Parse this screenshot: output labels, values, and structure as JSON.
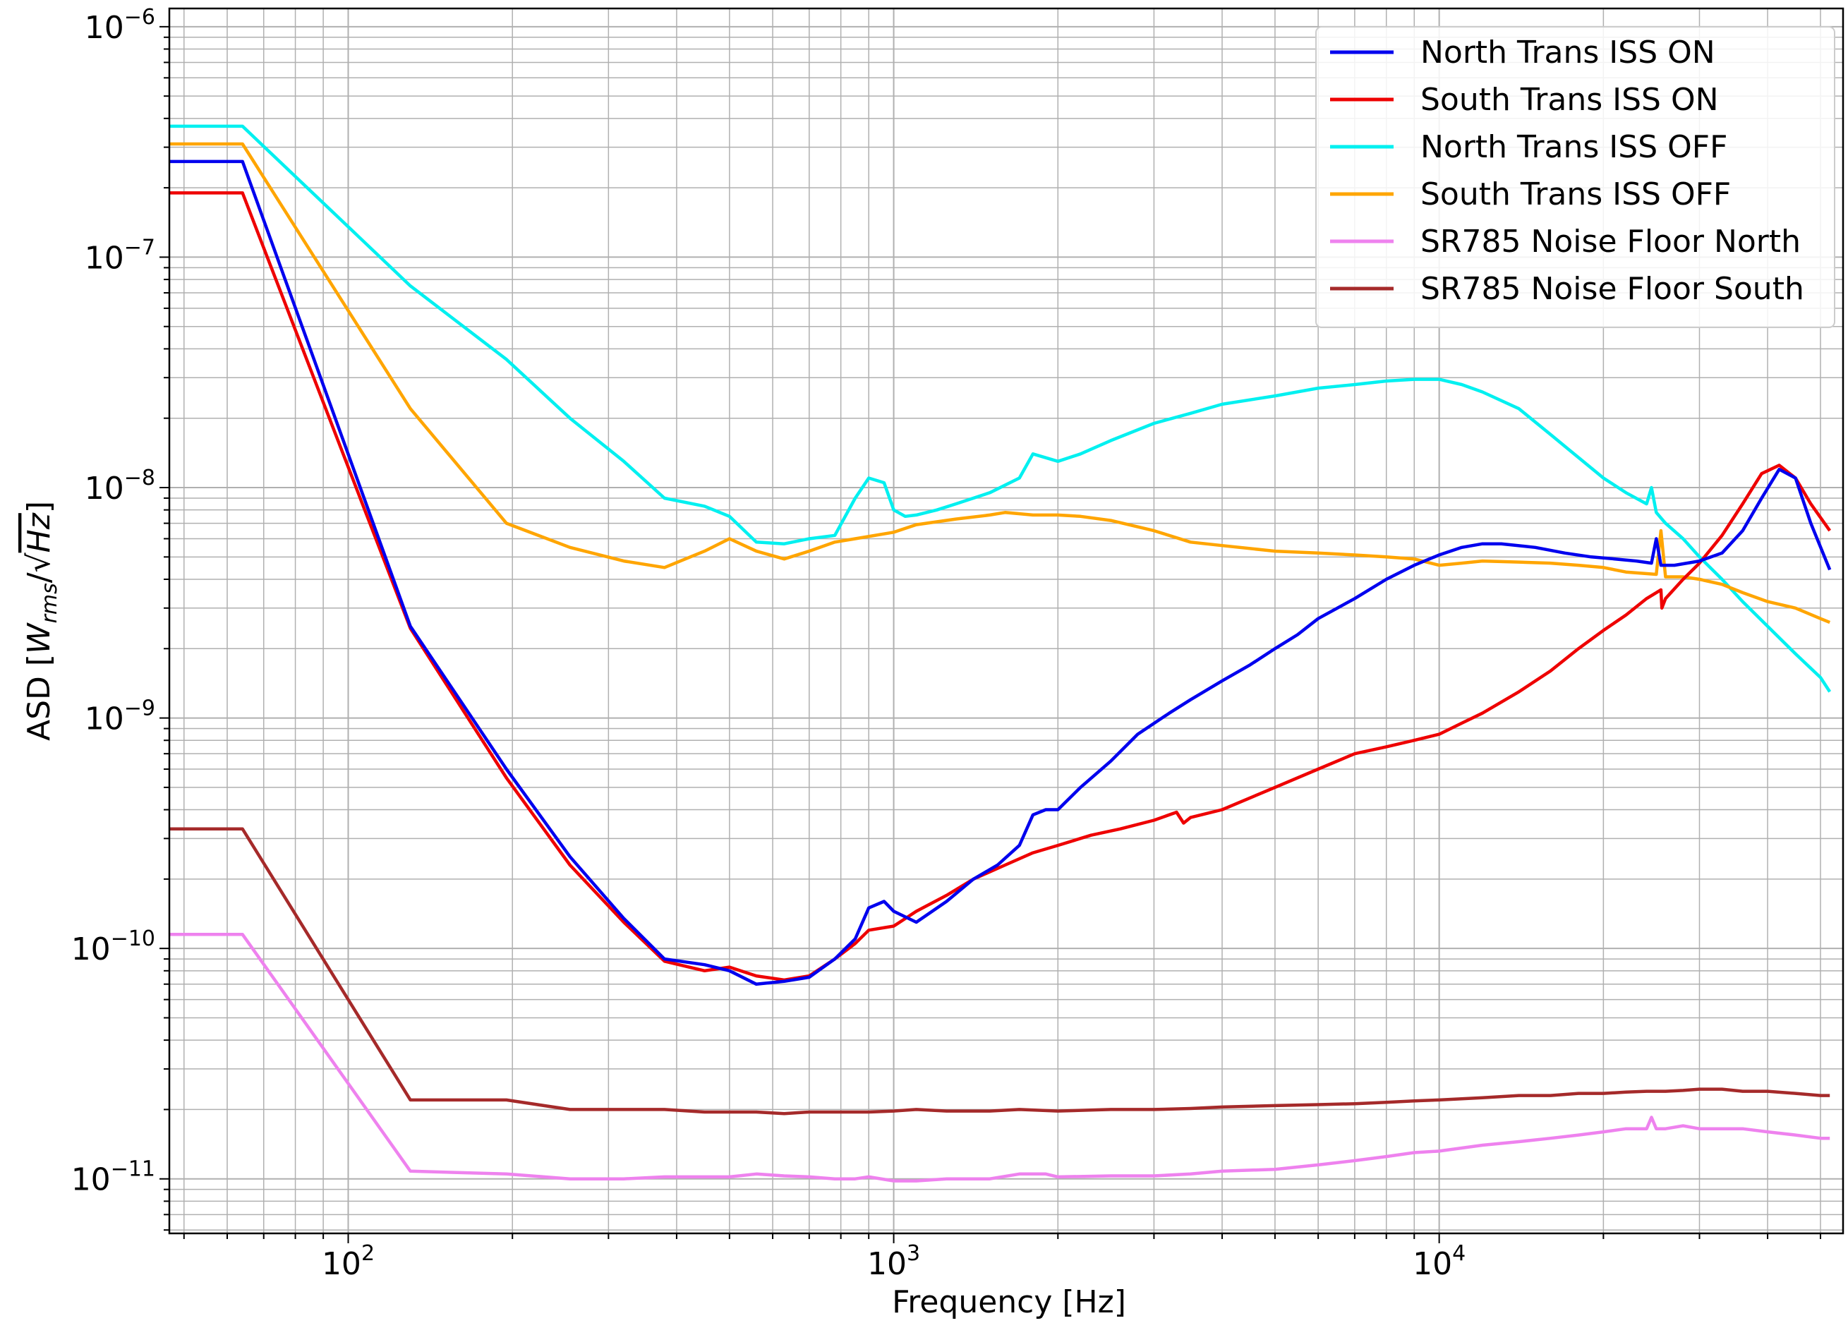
{
  "chart_data": {
    "type": "line",
    "title": "",
    "xlabel": "Frequency [Hz]",
    "ylabel": "ASD [W_rms/√Hz]",
    "ylabel_parts": {
      "prefix": "ASD [",
      "w": "W",
      "sub": "rms",
      "slash": "/√",
      "hz": "Hz",
      "suffix": "]"
    },
    "xscale": "log",
    "yscale": "log",
    "xlim": [
      47,
      55000
    ],
    "ylim": [
      5.8e-12,
      1.2e-06
    ],
    "grid": true,
    "legend_position": "top-right",
    "x_ticks": [
      {
        "value": 100,
        "base": "10",
        "exp": "2"
      },
      {
        "value": 1000,
        "base": "10",
        "exp": "3"
      },
      {
        "value": 10000,
        "base": "10",
        "exp": "4"
      }
    ],
    "y_ticks": [
      {
        "value": 1e-11,
        "base": "10",
        "exp": "−11"
      },
      {
        "value": 1e-10,
        "base": "10",
        "exp": "−10"
      },
      {
        "value": 1e-09,
        "base": "10",
        "exp": "−9"
      },
      {
        "value": 1e-08,
        "base": "10",
        "exp": "−8"
      },
      {
        "value": 1e-07,
        "base": "10",
        "exp": "−7"
      },
      {
        "value": 1e-06,
        "base": "10",
        "exp": "−6"
      }
    ],
    "series": [
      {
        "name": "North Trans ISS ON",
        "color": "#0000ee",
        "x": [
          47,
          64,
          130,
          195,
          255,
          320,
          380,
          450,
          500,
          560,
          630,
          700,
          780,
          850,
          900,
          960,
          1000,
          1100,
          1250,
          1400,
          1550,
          1700,
          1800,
          1900,
          2000,
          2200,
          2500,
          2800,
          3200,
          3500,
          4000,
          4500,
          5000,
          5500,
          6000,
          7000,
          8000,
          9000,
          10000,
          11000,
          12000,
          13000,
          15000,
          17000,
          19000,
          21000,
          23000,
          24500,
          25000,
          25500,
          27000,
          30000,
          33000,
          36000,
          39000,
          42000,
          45000,
          48000,
          52000
        ],
        "y": [
          2.6e-07,
          2.6e-07,
          2.5e-09,
          6e-10,
          2.5e-10,
          1.35e-10,
          9e-11,
          8.5e-11,
          8e-11,
          7e-11,
          7.2e-11,
          7.5e-11,
          9e-11,
          1.1e-10,
          1.5e-10,
          1.6e-10,
          1.45e-10,
          1.3e-10,
          1.6e-10,
          2e-10,
          2.3e-10,
          2.8e-10,
          3.8e-10,
          4e-10,
          4e-10,
          5e-10,
          6.5e-10,
          8.5e-10,
          1.05e-09,
          1.2e-09,
          1.45e-09,
          1.7e-09,
          2e-09,
          2.3e-09,
          2.7e-09,
          3.3e-09,
          4e-09,
          4.6e-09,
          5.1e-09,
          5.5e-09,
          5.7e-09,
          5.7e-09,
          5.5e-09,
          5.2e-09,
          5e-09,
          4.9e-09,
          4.8e-09,
          4.7e-09,
          6e-09,
          4.6e-09,
          4.6e-09,
          4.8e-09,
          5.2e-09,
          6.5e-09,
          9e-09,
          1.2e-08,
          1.1e-08,
          7e-09,
          4.4e-09
        ]
      },
      {
        "name": "South Trans ISS ON",
        "color": "#ee0000",
        "x": [
          47,
          64,
          130,
          195,
          255,
          320,
          380,
          450,
          500,
          560,
          630,
          700,
          780,
          850,
          900,
          1000,
          1100,
          1250,
          1400,
          1600,
          1800,
          2000,
          2300,
          2600,
          3000,
          3300,
          3400,
          3500,
          4000,
          5000,
          6000,
          7000,
          8000,
          9000,
          10000,
          11000,
          12000,
          14000,
          16000,
          18000,
          20000,
          22000,
          24000,
          25500,
          25600,
          26000,
          28000,
          30000,
          33000,
          36000,
          39000,
          42000,
          45000,
          48000,
          52000
        ],
        "y": [
          1.9e-07,
          1.9e-07,
          2.45e-09,
          5.5e-10,
          2.3e-10,
          1.3e-10,
          8.8e-11,
          8e-11,
          8.3e-11,
          7.6e-11,
          7.3e-11,
          7.6e-11,
          9e-11,
          1.05e-10,
          1.2e-10,
          1.25e-10,
          1.45e-10,
          1.7e-10,
          2e-10,
          2.3e-10,
          2.6e-10,
          2.8e-10,
          3.1e-10,
          3.3e-10,
          3.6e-10,
          3.9e-10,
          3.5e-10,
          3.7e-10,
          4e-10,
          5e-10,
          6e-10,
          7e-10,
          7.5e-10,
          8e-10,
          8.5e-10,
          9.5e-10,
          1.05e-09,
          1.3e-09,
          1.6e-09,
          2e-09,
          2.4e-09,
          2.8e-09,
          3.3e-09,
          3.6e-09,
          3e-09,
          3.3e-09,
          4e-09,
          4.7e-09,
          6.2e-09,
          8.5e-09,
          1.15e-08,
          1.25e-08,
          1.1e-08,
          8.5e-09,
          6.5e-09
        ]
      },
      {
        "name": "North Trans ISS OFF",
        "color": "#00f0f0",
        "x": [
          47,
          64,
          130,
          195,
          255,
          320,
          380,
          450,
          500,
          560,
          630,
          700,
          780,
          850,
          900,
          960,
          1000,
          1050,
          1100,
          1200,
          1300,
          1500,
          1700,
          1800,
          2000,
          2200,
          2500,
          3000,
          3500,
          4000,
          5000,
          6000,
          7000,
          8000,
          9000,
          10000,
          11000,
          12000,
          14000,
          16000,
          18000,
          20000,
          22000,
          24000,
          24500,
          25000,
          26000,
          28000,
          30000,
          33000,
          36000,
          40000,
          45000,
          50000,
          52000
        ],
        "y": [
          3.7e-07,
          3.7e-07,
          7.5e-08,
          3.6e-08,
          2e-08,
          1.3e-08,
          9e-09,
          8.3e-09,
          7.5e-09,
          5.8e-09,
          5.7e-09,
          6e-09,
          6.2e-09,
          9e-09,
          1.1e-08,
          1.05e-08,
          8e-09,
          7.5e-09,
          7.6e-09,
          8e-09,
          8.5e-09,
          9.5e-09,
          1.1e-08,
          1.4e-08,
          1.3e-08,
          1.4e-08,
          1.6e-08,
          1.9e-08,
          2.1e-08,
          2.3e-08,
          2.5e-08,
          2.7e-08,
          2.8e-08,
          2.9e-08,
          2.95e-08,
          2.95e-08,
          2.8e-08,
          2.6e-08,
          2.2e-08,
          1.7e-08,
          1.35e-08,
          1.1e-08,
          9.5e-09,
          8.5e-09,
          1e-08,
          7.8e-09,
          7e-09,
          6e-09,
          5e-09,
          4e-09,
          3.2e-09,
          2.5e-09,
          1.9e-09,
          1.5e-09,
          1.3e-09
        ]
      },
      {
        "name": "South Trans ISS OFF",
        "color": "#ffa500",
        "x": [
          47,
          64,
          130,
          195,
          255,
          320,
          380,
          450,
          500,
          560,
          630,
          700,
          780,
          850,
          1000,
          1100,
          1300,
          1500,
          1600,
          1800,
          2000,
          2200,
          2500,
          3000,
          3500,
          4000,
          5000,
          6000,
          7000,
          8000,
          9000,
          10000,
          11000,
          12000,
          14000,
          16000,
          18000,
          20000,
          22000,
          25000,
          25500,
          26000,
          28000,
          30000,
          33000,
          36000,
          40000,
          45000,
          50000,
          52000
        ],
        "y": [
          3.1e-07,
          3.1e-07,
          2.2e-08,
          7e-09,
          5.5e-09,
          4.8e-09,
          4.5e-09,
          5.3e-09,
          6e-09,
          5.3e-09,
          4.9e-09,
          5.3e-09,
          5.8e-09,
          6e-09,
          6.4e-09,
          6.9e-09,
          7.3e-09,
          7.6e-09,
          7.8e-09,
          7.6e-09,
          7.6e-09,
          7.5e-09,
          7.2e-09,
          6.5e-09,
          5.8e-09,
          5.6e-09,
          5.3e-09,
          5.2e-09,
          5.1e-09,
          5e-09,
          4.9e-09,
          4.6e-09,
          4.7e-09,
          4.8e-09,
          4.75e-09,
          4.7e-09,
          4.6e-09,
          4.5e-09,
          4.3e-09,
          4.2e-09,
          6.5e-09,
          4.1e-09,
          4.1e-09,
          4e-09,
          3.8e-09,
          3.5e-09,
          3.2e-09,
          3e-09,
          2.7e-09,
          2.6e-09
        ]
      },
      {
        "name": "SR785 Noise Floor North",
        "color": "#ee82ee",
        "x": [
          47,
          64,
          130,
          195,
          255,
          320,
          380,
          450,
          500,
          560,
          630,
          700,
          780,
          850,
          900,
          1000,
          1100,
          1250,
          1500,
          1700,
          1900,
          2000,
          2500,
          3000,
          3500,
          4000,
          5000,
          6000,
          7000,
          8000,
          9000,
          10000,
          12000,
          14000,
          16000,
          18000,
          20000,
          22000,
          24000,
          24500,
          25000,
          26000,
          28000,
          30000,
          33000,
          36000,
          40000,
          45000,
          50000,
          52000
        ],
        "y": [
          1.15e-10,
          1.15e-10,
          1.08e-11,
          1.05e-11,
          1e-11,
          1e-11,
          1.02e-11,
          1.02e-11,
          1.02e-11,
          1.05e-11,
          1.03e-11,
          1.02e-11,
          1e-11,
          1e-11,
          1.02e-11,
          9.8e-12,
          9.8e-12,
          1e-11,
          1e-11,
          1.05e-11,
          1.05e-11,
          1.02e-11,
          1.03e-11,
          1.03e-11,
          1.05e-11,
          1.08e-11,
          1.1e-11,
          1.15e-11,
          1.2e-11,
          1.25e-11,
          1.3e-11,
          1.32e-11,
          1.4e-11,
          1.45e-11,
          1.5e-11,
          1.55e-11,
          1.6e-11,
          1.65e-11,
          1.65e-11,
          1.85e-11,
          1.65e-11,
          1.65e-11,
          1.7e-11,
          1.65e-11,
          1.65e-11,
          1.65e-11,
          1.6e-11,
          1.55e-11,
          1.5e-11,
          1.5e-11
        ]
      },
      {
        "name": "SR785 Noise Floor South",
        "color": "#a52a2a",
        "x": [
          47,
          64,
          130,
          195,
          255,
          320,
          380,
          450,
          500,
          560,
          630,
          700,
          780,
          850,
          900,
          1000,
          1100,
          1250,
          1500,
          1700,
          2000,
          2500,
          3000,
          3500,
          4000,
          5000,
          6000,
          7000,
          8000,
          9000,
          10000,
          12000,
          14000,
          16000,
          18000,
          20000,
          22000,
          24000,
          26000,
          28000,
          30000,
          33000,
          36000,
          40000,
          45000,
          50000,
          52000
        ],
        "y": [
          3.3e-10,
          3.3e-10,
          2.2e-11,
          2.2e-11,
          2e-11,
          2e-11,
          2e-11,
          1.95e-11,
          1.95e-11,
          1.95e-11,
          1.92e-11,
          1.95e-11,
          1.95e-11,
          1.95e-11,
          1.95e-11,
          1.97e-11,
          2e-11,
          1.97e-11,
          1.97e-11,
          2e-11,
          1.97e-11,
          2e-11,
          2e-11,
          2.02e-11,
          2.05e-11,
          2.08e-11,
          2.1e-11,
          2.12e-11,
          2.15e-11,
          2.18e-11,
          2.2e-11,
          2.25e-11,
          2.3e-11,
          2.3e-11,
          2.35e-11,
          2.35e-11,
          2.38e-11,
          2.4e-11,
          2.4e-11,
          2.42e-11,
          2.45e-11,
          2.45e-11,
          2.4e-11,
          2.4e-11,
          2.35e-11,
          2.3e-11,
          2.3e-11
        ]
      }
    ]
  }
}
